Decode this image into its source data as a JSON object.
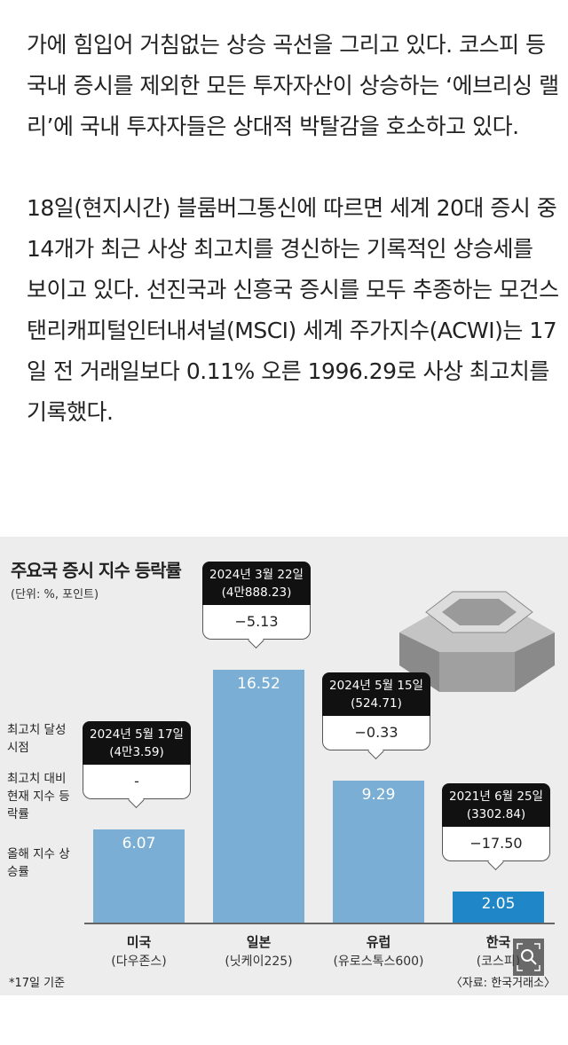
{
  "article": {
    "paragraph1": "가에 힘입어 거침없는 상승 곡선을 그리고 있다. 코스피 등 국내 증시를 제외한 모든 투자자산이 상승하는 ‘에브리싱 랠리’에 국내 투자자들은 상대적 박탈감을 호소하고 있다.",
    "paragraph2": "18일(현지시간) 블룸버그통신에 따르면 세계 20대 증시 중 14개가 최근 사상 최고치를 경신하는 기록적인 상승세를 보이고 있다. 선진국과 신흥국 증시를 모두 추종하는 모건스탠리캐피털인터내셔널(MSCI) 세계 주가지수(ACWI)는 17일 전 거래일보다 0.11% 오른 1996.29로 사상 최고치를 기록했다."
  },
  "chart_data": {
    "type": "bar",
    "title": "주요국 증시 지수 등락률",
    "subtitle": "(단위: %, 포인트)",
    "legend_labels": {
      "record_date": "최고치 달성 시점",
      "vs_record": "최고치 대비 현재 지수 등락률",
      "ytd": "올해 지수 상승률"
    },
    "categories": [
      {
        "name": "미국",
        "index": "(다우존스)"
      },
      {
        "name": "일본",
        "index": "(닛케이225)"
      },
      {
        "name": "유럽",
        "index": "(유로스톡스600)"
      },
      {
        "name": "한국",
        "index": "(코스피)"
      }
    ],
    "values": [
      6.07,
      16.52,
      9.29,
      2.05
    ],
    "value_labels": [
      "6.07",
      "16.52",
      "9.29",
      "2.05"
    ],
    "record_dates": [
      "2024년 5월 17일",
      "2024년 3월 22일",
      "2024년 5월 15일",
      "2021년 6월 25일"
    ],
    "record_levels": [
      "(4만3.59)",
      "(4만888.23)",
      "(524.71)",
      "(3302.84)"
    ],
    "vs_record_labels": [
      "-",
      "−5.13",
      "−0.33",
      "−17.50"
    ],
    "highlight_color": "#1f86c7",
    "bar_color": "#7aaed4",
    "footnote": "*17일 기준",
    "source": "〈자료: 한국거래소〉"
  }
}
